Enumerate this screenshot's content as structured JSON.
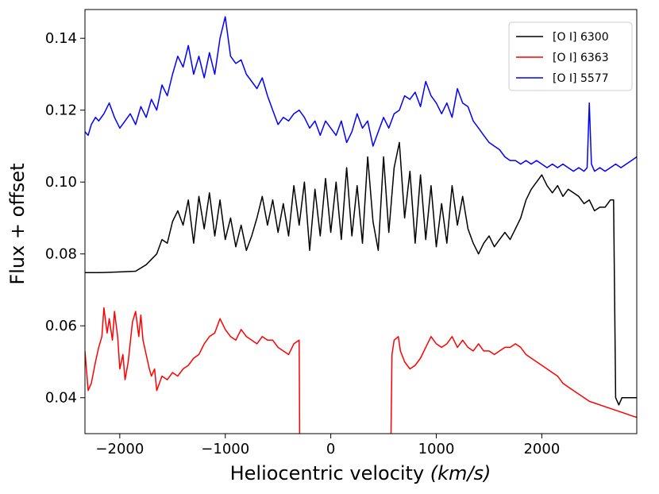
{
  "chart_data": {
    "type": "line",
    "title": "",
    "xlabel_main": "Heliocentric velocity ",
    "xlabel_unit": "(km/s)",
    "ylabel": "Flux + offset",
    "xlim": [
      -2330,
      2900
    ],
    "ylim": [
      0.03,
      0.148
    ],
    "xticks": [
      -2000,
      -1000,
      0,
      1000,
      2000
    ],
    "xtick_labels": [
      "−2000",
      "−1000",
      "0",
      "1000",
      "2000"
    ],
    "yticks": [
      0.04,
      0.06,
      0.08,
      0.1,
      0.12,
      0.14
    ],
    "ytick_labels": [
      "0.04",
      "0.06",
      "0.08",
      "0.10",
      "0.12",
      "0.14"
    ],
    "grid": false,
    "legend_position": "top-right",
    "series": [
      {
        "name": "[O I] 6300",
        "color": "#000000",
        "points": [
          [
            -2330,
            0.0748
          ],
          [
            -2200,
            0.0748
          ],
          [
            -2000,
            0.075
          ],
          [
            -1850,
            0.0752
          ],
          [
            -1750,
            0.077
          ],
          [
            -1650,
            0.08
          ],
          [
            -1600,
            0.084
          ],
          [
            -1550,
            0.083
          ],
          [
            -1500,
            0.089
          ],
          [
            -1450,
            0.092
          ],
          [
            -1400,
            0.088
          ],
          [
            -1350,
            0.095
          ],
          [
            -1300,
            0.083
          ],
          [
            -1250,
            0.096
          ],
          [
            -1200,
            0.087
          ],
          [
            -1150,
            0.097
          ],
          [
            -1100,
            0.085
          ],
          [
            -1050,
            0.095
          ],
          [
            -1000,
            0.084
          ],
          [
            -950,
            0.09
          ],
          [
            -900,
            0.082
          ],
          [
            -850,
            0.088
          ],
          [
            -800,
            0.081
          ],
          [
            -750,
            0.085
          ],
          [
            -700,
            0.09
          ],
          [
            -650,
            0.096
          ],
          [
            -600,
            0.088
          ],
          [
            -550,
            0.095
          ],
          [
            -500,
            0.086
          ],
          [
            -450,
            0.094
          ],
          [
            -400,
            0.085
          ],
          [
            -350,
            0.099
          ],
          [
            -300,
            0.088
          ],
          [
            -250,
            0.1
          ],
          [
            -200,
            0.081
          ],
          [
            -150,
            0.098
          ],
          [
            -100,
            0.085
          ],
          [
            -50,
            0.101
          ],
          [
            0,
            0.086
          ],
          [
            50,
            0.1
          ],
          [
            100,
            0.084
          ],
          [
            150,
            0.104
          ],
          [
            200,
            0.085
          ],
          [
            250,
            0.099
          ],
          [
            300,
            0.083
          ],
          [
            350,
            0.107
          ],
          [
            400,
            0.089
          ],
          [
            450,
            0.081
          ],
          [
            500,
            0.107
          ],
          [
            550,
            0.086
          ],
          [
            600,
            0.104
          ],
          [
            650,
            0.111
          ],
          [
            700,
            0.09
          ],
          [
            750,
            0.103
          ],
          [
            800,
            0.083
          ],
          [
            850,
            0.102
          ],
          [
            900,
            0.084
          ],
          [
            950,
            0.099
          ],
          [
            1000,
            0.082
          ],
          [
            1050,
            0.094
          ],
          [
            1100,
            0.083
          ],
          [
            1150,
            0.099
          ],
          [
            1200,
            0.088
          ],
          [
            1250,
            0.096
          ],
          [
            1300,
            0.087
          ],
          [
            1350,
            0.083
          ],
          [
            1400,
            0.08
          ],
          [
            1450,
            0.083
          ],
          [
            1500,
            0.085
          ],
          [
            1550,
            0.082
          ],
          [
            1600,
            0.084
          ],
          [
            1650,
            0.086
          ],
          [
            1700,
            0.084
          ],
          [
            1750,
            0.087
          ],
          [
            1800,
            0.09
          ],
          [
            1850,
            0.095
          ],
          [
            1900,
            0.098
          ],
          [
            1950,
            0.1
          ],
          [
            2000,
            0.102
          ],
          [
            2050,
            0.099
          ],
          [
            2100,
            0.097
          ],
          [
            2150,
            0.099
          ],
          [
            2200,
            0.096
          ],
          [
            2250,
            0.098
          ],
          [
            2300,
            0.097
          ],
          [
            2350,
            0.096
          ],
          [
            2400,
            0.094
          ],
          [
            2450,
            0.095
          ],
          [
            2500,
            0.092
          ],
          [
            2550,
            0.093
          ],
          [
            2600,
            0.093
          ],
          [
            2650,
            0.095
          ],
          [
            2680,
            0.095
          ],
          [
            2700,
            0.04
          ],
          [
            2730,
            0.038
          ],
          [
            2760,
            0.04
          ],
          [
            2900,
            0.04
          ]
        ]
      },
      {
        "name": "[O I] 6363",
        "color": "#ff0000",
        "points": [
          [
            -2330,
            0.053
          ],
          [
            -2300,
            0.042
          ],
          [
            -2270,
            0.044
          ],
          [
            -2230,
            0.05
          ],
          [
            -2200,
            0.054
          ],
          [
            -2170,
            0.057
          ],
          [
            -2150,
            0.065
          ],
          [
            -2120,
            0.058
          ],
          [
            -2100,
            0.062
          ],
          [
            -2070,
            0.056
          ],
          [
            -2050,
            0.064
          ],
          [
            -2020,
            0.057
          ],
          [
            -2000,
            0.048
          ],
          [
            -1970,
            0.052
          ],
          [
            -1950,
            0.045
          ],
          [
            -1920,
            0.05
          ],
          [
            -1880,
            0.061
          ],
          [
            -1850,
            0.064
          ],
          [
            -1820,
            0.057
          ],
          [
            -1800,
            0.063
          ],
          [
            -1780,
            0.056
          ],
          [
            -1750,
            0.052
          ],
          [
            -1720,
            0.048
          ],
          [
            -1700,
            0.046
          ],
          [
            -1670,
            0.048
          ],
          [
            -1650,
            0.042
          ],
          [
            -1600,
            0.046
          ],
          [
            -1550,
            0.045
          ],
          [
            -1500,
            0.047
          ],
          [
            -1450,
            0.046
          ],
          [
            -1400,
            0.048
          ],
          [
            -1350,
            0.049
          ],
          [
            -1300,
            0.051
          ],
          [
            -1250,
            0.052
          ],
          [
            -1200,
            0.055
          ],
          [
            -1150,
            0.057
          ],
          [
            -1100,
            0.058
          ],
          [
            -1050,
            0.062
          ],
          [
            -1000,
            0.059
          ],
          [
            -950,
            0.057
          ],
          [
            -900,
            0.056
          ],
          [
            -850,
            0.059
          ],
          [
            -800,
            0.057
          ],
          [
            -750,
            0.056
          ],
          [
            -700,
            0.055
          ],
          [
            -650,
            0.057
          ],
          [
            -600,
            0.056
          ],
          [
            -550,
            0.056
          ],
          [
            -500,
            0.054
          ],
          [
            -450,
            0.053
          ],
          [
            -400,
            0.052
          ],
          [
            -350,
            0.055
          ],
          [
            -300,
            0.056
          ],
          [
            -295,
            0.029
          ],
          [
            570,
            0.029
          ],
          [
            580,
            0.052
          ],
          [
            600,
            0.056
          ],
          [
            640,
            0.057
          ],
          [
            660,
            0.053
          ],
          [
            700,
            0.05
          ],
          [
            750,
            0.048
          ],
          [
            800,
            0.049
          ],
          [
            850,
            0.051
          ],
          [
            900,
            0.054
          ],
          [
            950,
            0.057
          ],
          [
            1000,
            0.055
          ],
          [
            1050,
            0.054
          ],
          [
            1100,
            0.055
          ],
          [
            1150,
            0.057
          ],
          [
            1200,
            0.054
          ],
          [
            1250,
            0.056
          ],
          [
            1300,
            0.054
          ],
          [
            1350,
            0.053
          ],
          [
            1400,
            0.055
          ],
          [
            1450,
            0.053
          ],
          [
            1500,
            0.053
          ],
          [
            1550,
            0.052
          ],
          [
            1600,
            0.053
          ],
          [
            1650,
            0.054
          ],
          [
            1700,
            0.054
          ],
          [
            1750,
            0.055
          ],
          [
            1800,
            0.054
          ],
          [
            1850,
            0.052
          ],
          [
            1900,
            0.051
          ],
          [
            1950,
            0.05
          ],
          [
            2000,
            0.049
          ],
          [
            2050,
            0.048
          ],
          [
            2100,
            0.047
          ],
          [
            2150,
            0.046
          ],
          [
            2200,
            0.044
          ],
          [
            2250,
            0.043
          ],
          [
            2300,
            0.042
          ],
          [
            2350,
            0.041
          ],
          [
            2400,
            0.04
          ],
          [
            2450,
            0.039
          ],
          [
            2500,
            0.0385
          ],
          [
            2550,
            0.038
          ],
          [
            2600,
            0.0375
          ],
          [
            2650,
            0.037
          ],
          [
            2700,
            0.0365
          ],
          [
            2750,
            0.036
          ],
          [
            2800,
            0.0355
          ],
          [
            2850,
            0.035
          ],
          [
            2900,
            0.0345
          ]
        ]
      },
      {
        "name": "[O I] 5577",
        "color": "#0000ff",
        "points": [
          [
            -2330,
            0.114
          ],
          [
            -2300,
            0.113
          ],
          [
            -2270,
            0.116
          ],
          [
            -2230,
            0.118
          ],
          [
            -2200,
            0.117
          ],
          [
            -2150,
            0.119
          ],
          [
            -2100,
            0.122
          ],
          [
            -2050,
            0.118
          ],
          [
            -2000,
            0.115
          ],
          [
            -1950,
            0.117
          ],
          [
            -1900,
            0.119
          ],
          [
            -1850,
            0.116
          ],
          [
            -1800,
            0.121
          ],
          [
            -1750,
            0.118
          ],
          [
            -1700,
            0.123
          ],
          [
            -1650,
            0.12
          ],
          [
            -1600,
            0.127
          ],
          [
            -1550,
            0.124
          ],
          [
            -1500,
            0.13
          ],
          [
            -1450,
            0.135
          ],
          [
            -1400,
            0.132
          ],
          [
            -1350,
            0.138
          ],
          [
            -1300,
            0.13
          ],
          [
            -1250,
            0.135
          ],
          [
            -1200,
            0.129
          ],
          [
            -1150,
            0.136
          ],
          [
            -1100,
            0.13
          ],
          [
            -1050,
            0.14
          ],
          [
            -1000,
            0.146
          ],
          [
            -950,
            0.135
          ],
          [
            -900,
            0.133
          ],
          [
            -850,
            0.134
          ],
          [
            -800,
            0.13
          ],
          [
            -750,
            0.128
          ],
          [
            -700,
            0.126
          ],
          [
            -650,
            0.129
          ],
          [
            -600,
            0.124
          ],
          [
            -550,
            0.12
          ],
          [
            -500,
            0.116
          ],
          [
            -450,
            0.118
          ],
          [
            -400,
            0.117
          ],
          [
            -350,
            0.119
          ],
          [
            -300,
            0.12
          ],
          [
            -250,
            0.118
          ],
          [
            -200,
            0.115
          ],
          [
            -150,
            0.117
          ],
          [
            -100,
            0.113
          ],
          [
            -50,
            0.117
          ],
          [
            0,
            0.115
          ],
          [
            50,
            0.113
          ],
          [
            100,
            0.117
          ],
          [
            150,
            0.111
          ],
          [
            200,
            0.114
          ],
          [
            250,
            0.119
          ],
          [
            300,
            0.115
          ],
          [
            350,
            0.117
          ],
          [
            400,
            0.11
          ],
          [
            450,
            0.114
          ],
          [
            500,
            0.118
          ],
          [
            550,
            0.115
          ],
          [
            600,
            0.119
          ],
          [
            650,
            0.12
          ],
          [
            700,
            0.124
          ],
          [
            750,
            0.123
          ],
          [
            800,
            0.125
          ],
          [
            850,
            0.121
          ],
          [
            900,
            0.128
          ],
          [
            950,
            0.124
          ],
          [
            1000,
            0.122
          ],
          [
            1050,
            0.119
          ],
          [
            1100,
            0.122
          ],
          [
            1150,
            0.118
          ],
          [
            1200,
            0.126
          ],
          [
            1250,
            0.122
          ],
          [
            1300,
            0.121
          ],
          [
            1350,
            0.117
          ],
          [
            1400,
            0.115
          ],
          [
            1450,
            0.113
          ],
          [
            1500,
            0.111
          ],
          [
            1550,
            0.11
          ],
          [
            1600,
            0.109
          ],
          [
            1650,
            0.107
          ],
          [
            1700,
            0.106
          ],
          [
            1750,
            0.106
          ],
          [
            1800,
            0.105
          ],
          [
            1850,
            0.106
          ],
          [
            1900,
            0.105
          ],
          [
            1950,
            0.106
          ],
          [
            2000,
            0.105
          ],
          [
            2050,
            0.104
          ],
          [
            2100,
            0.105
          ],
          [
            2150,
            0.104
          ],
          [
            2200,
            0.105
          ],
          [
            2250,
            0.104
          ],
          [
            2300,
            0.103
          ],
          [
            2350,
            0.104
          ],
          [
            2400,
            0.103
          ],
          [
            2430,
            0.104
          ],
          [
            2450,
            0.122
          ],
          [
            2470,
            0.105
          ],
          [
            2500,
            0.103
          ],
          [
            2550,
            0.104
          ],
          [
            2600,
            0.103
          ],
          [
            2650,
            0.104
          ],
          [
            2700,
            0.105
          ],
          [
            2750,
            0.104
          ],
          [
            2800,
            0.105
          ],
          [
            2850,
            0.106
          ],
          [
            2900,
            0.107
          ]
        ]
      }
    ]
  }
}
